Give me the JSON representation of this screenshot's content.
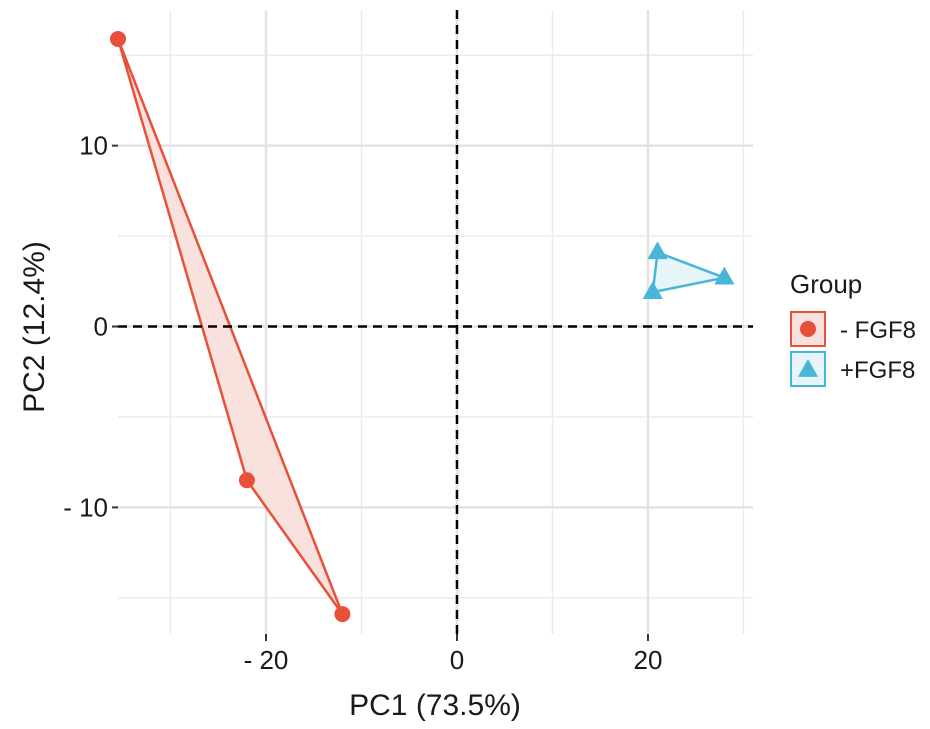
{
  "chart_data": {
    "type": "scatter",
    "xlabel": "PC1 (73.5%)",
    "ylabel": "PC2 (12.4%)",
    "xlim": [
      -35.5,
      31
    ],
    "ylim": [
      -17,
      17.5
    ],
    "x_ticks": [
      {
        "value": -20,
        "label": "- 20"
      },
      {
        "value": 0,
        "label": "0"
      },
      {
        "value": 20,
        "label": "20"
      }
    ],
    "y_ticks": [
      {
        "value": 10,
        "label": "10"
      },
      {
        "value": 0,
        "label": "0"
      },
      {
        "value": -10,
        "label": "- 10"
      }
    ],
    "x_minor_grid": [
      -30,
      -10,
      10,
      30
    ],
    "y_minor_grid": [
      15,
      5,
      -5,
      -15
    ],
    "grid": true,
    "reference_lines": {
      "x": 0,
      "y": 0,
      "style": "dashed"
    },
    "legend": {
      "title": "Group",
      "placement": "right"
    },
    "series": [
      {
        "name": "- FGF8",
        "marker": "circle",
        "color": "#E8503A",
        "fill": "#F9E1DE",
        "points": [
          [
            -35.5,
            15.9
          ],
          [
            -22,
            -8.5
          ],
          [
            -12,
            -15.9
          ]
        ]
      },
      {
        "name": "+FGF8",
        "marker": "triangle",
        "color": "#48B6D6",
        "fill": "#E6F5F8",
        "points": [
          [
            21,
            4.1
          ],
          [
            28,
            2.7
          ],
          [
            20.5,
            1.9
          ]
        ]
      }
    ]
  }
}
